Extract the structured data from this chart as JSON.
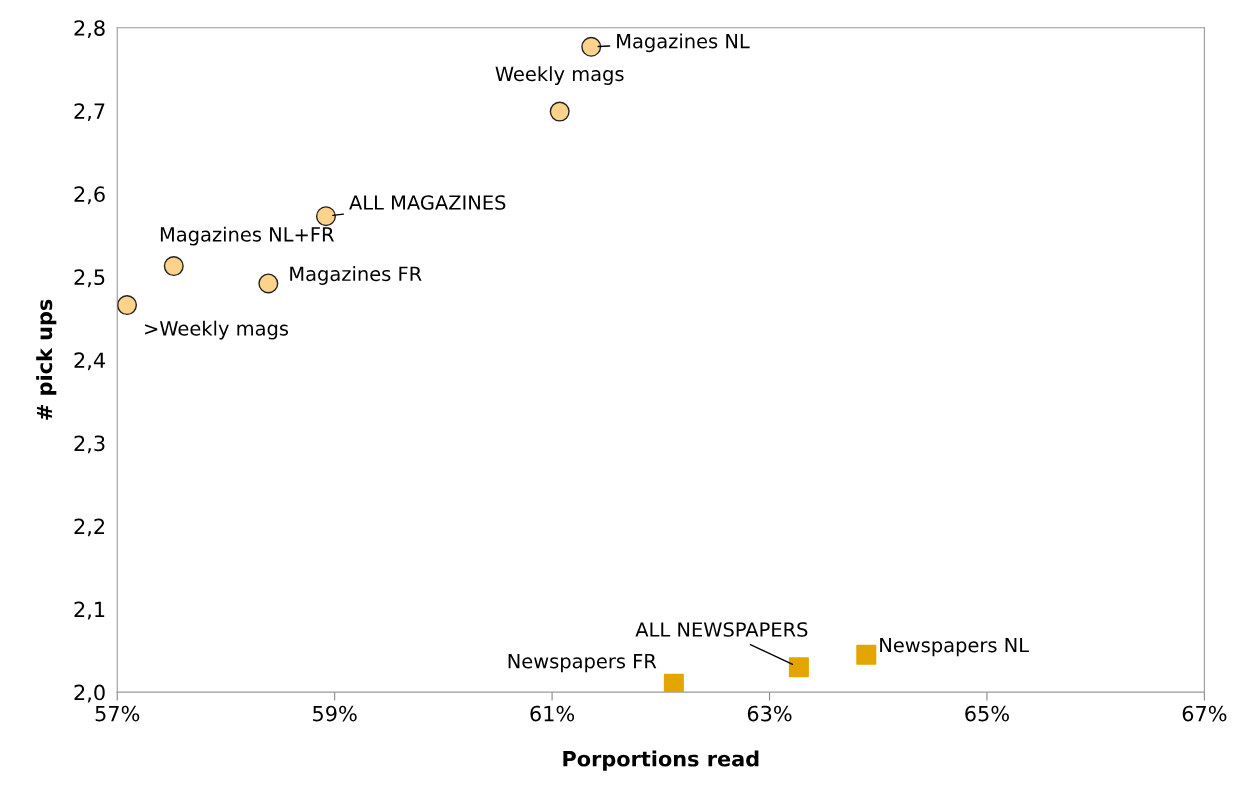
{
  "chart_data": {
    "type": "scatter",
    "xlabel": "Porportions read",
    "ylabel": "# pick ups",
    "series": [
      {
        "marker": "circle",
        "color": "#fdd38c",
        "x": [
          61.36,
          61.07,
          58.92,
          57.52,
          58.39,
          57.09
        ],
        "values": [
          2.777,
          2.699,
          2.573,
          2.513,
          2.492,
          2.466
        ]
      },
      {
        "marker": "square",
        "color": "#e3a600",
        "x": [
          62.12,
          63.27,
          63.89
        ],
        "values": [
          2.01,
          2.03,
          2.045
        ]
      }
    ],
    "annotations": [
      {
        "text": "Magazines NL",
        "x": 61.36,
        "y": 2.777
      },
      {
        "text": "Weekly mags",
        "x": 61.07,
        "y": 2.699
      },
      {
        "text": "ALL MAGAZINES",
        "x": 58.92,
        "y": 2.573
      },
      {
        "text": "Magazines NL+FR",
        "x": 57.52,
        "y": 2.513
      },
      {
        "text": "Magazines FR",
        "x": 58.39,
        "y": 2.492
      },
      {
        "text": ">Weekly mags",
        "x": 57.09,
        "y": 2.466
      },
      {
        "text": "Newspapers FR",
        "x": 62.12,
        "y": 2.01
      },
      {
        "text": "ALL NEWSPAPERS",
        "x": 63.27,
        "y": 2.03
      },
      {
        "text": "Newspapers NL",
        "x": 63.89,
        "y": 2.045
      }
    ],
    "xlim": [
      57,
      67
    ],
    "xticks": [
      {
        "value": 57,
        "label": "57%"
      },
      {
        "value": 59,
        "label": "59%"
      },
      {
        "value": 61,
        "label": "61%"
      },
      {
        "value": 63,
        "label": "63%"
      },
      {
        "value": 65,
        "label": "65%"
      },
      {
        "value": 67,
        "label": "67%"
      }
    ],
    "ylim": [
      2.0,
      2.8
    ],
    "yticks": [
      {
        "value": 2.0,
        "label": "2,0"
      },
      {
        "value": 2.1,
        "label": "2,1"
      },
      {
        "value": 2.2,
        "label": "2,2"
      },
      {
        "value": 2.3,
        "label": "2,3"
      },
      {
        "value": 2.4,
        "label": "2,4"
      },
      {
        "value": 2.5,
        "label": "2,5"
      },
      {
        "value": 2.6,
        "label": "2,6"
      },
      {
        "value": 2.7,
        "label": "2,7"
      },
      {
        "value": 2.8,
        "label": "2,8"
      }
    ],
    "grid": false,
    "legend": false
  }
}
